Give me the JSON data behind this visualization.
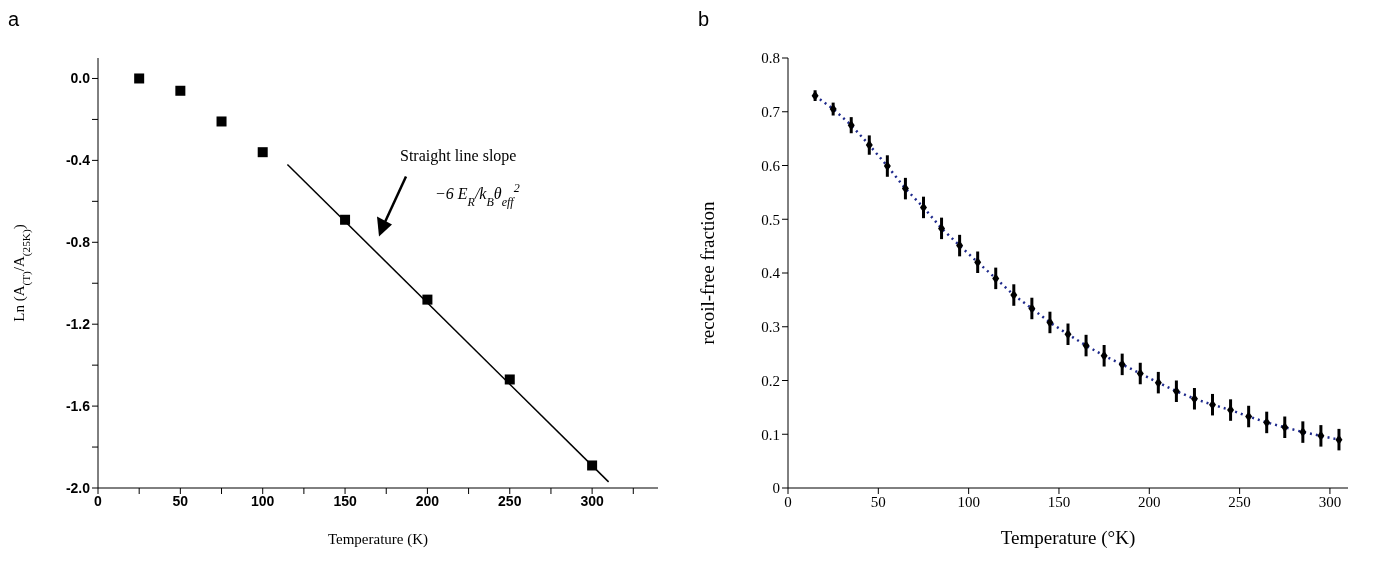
{
  "chart_data": [
    {
      "type": "scatter",
      "title": "a",
      "xlabel": "Temperature (K)",
      "ylabel": "Ln (A$_{(T)}$/A$_{(25K)}$)",
      "xlim": [
        0,
        340
      ],
      "xticks": [
        0,
        {
          "value": 25,
          "label": null
        },
        50,
        {
          "value": 75,
          "label": null
        },
        100,
        {
          "value": 125,
          "label": null
        },
        150,
        {
          "value": 175,
          "label": null
        },
        200,
        {
          "value": 225,
          "label": null
        },
        250,
        {
          "value": 275,
          "label": null
        },
        300,
        {
          "value": 325,
          "label": null
        }
      ],
      "ylim": [
        -2.0,
        0.1
      ],
      "yticks": [
        {
          "value": -2.0,
          "label": "-2.0"
        },
        {
          "value": -1.8,
          "label": null
        },
        {
          "value": -1.6,
          "label": "-1.6"
        },
        {
          "value": -1.4,
          "label": null
        },
        {
          "value": -1.2,
          "label": "-1.2"
        },
        {
          "value": -1.0,
          "label": null
        },
        {
          "value": -0.8,
          "label": "-0.8"
        },
        {
          "value": -0.6,
          "label": null
        },
        {
          "value": -0.4,
          "label": "-0.4"
        },
        {
          "value": -0.2,
          "label": null
        },
        {
          "value": 0.0,
          "label": "0.0"
        }
      ],
      "series": [
        {
          "color": "#000000",
          "marker": "square",
          "x": [
            25,
            50,
            75,
            100,
            150,
            200,
            250,
            300
          ],
          "values": [
            0.0,
            -0.06,
            -0.21,
            -0.36,
            -0.69,
            -1.08,
            -1.47,
            -1.89
          ]
        },
        {
          "type": "line",
          "color": "#000000",
          "marker": "none",
          "line_style": "solid",
          "x": [
            115,
            310
          ],
          "values": [
            -0.42,
            -1.97
          ]
        }
      ],
      "annotations": [
        "Straight line slope",
        "−6 E$_{R}$/k$_{B}$θ$_{eff}$$^{2}$"
      ]
    },
    {
      "type": "scatter",
      "title": "b",
      "xlabel": "Temperature (°K)",
      "ylabel": "recoil-free fraction",
      "xlim": [
        0,
        310
      ],
      "xticks": [
        0,
        50,
        100,
        150,
        200,
        250,
        300
      ],
      "ylim": [
        0,
        0.8
      ],
      "yticks": [
        0,
        0.1,
        0.2,
        0.3,
        0.4,
        0.5,
        0.6,
        0.7,
        0.8
      ],
      "series": [
        {
          "type": "line",
          "color": "#1f2a8c",
          "marker": "none",
          "line_style": "dotted",
          "x": [
            15,
            25,
            35,
            45,
            55,
            65,
            75,
            85,
            95,
            105,
            115,
            125,
            135,
            145,
            155,
            165,
            175,
            185,
            195,
            205,
            215,
            225,
            235,
            245,
            255,
            265,
            275,
            285,
            295,
            305
          ],
          "values": [
            0.73,
            0.705,
            0.675,
            0.638,
            0.599,
            0.557,
            0.522,
            0.483,
            0.451,
            0.42,
            0.39,
            0.359,
            0.334,
            0.308,
            0.286,
            0.265,
            0.246,
            0.23,
            0.213,
            0.196,
            0.18,
            0.166,
            0.155,
            0.145,
            0.133,
            0.122,
            0.113,
            0.104,
            0.097,
            0.09
          ]
        },
        {
          "color": "#000000",
          "marker": "diamond",
          "x": [
            15,
            25,
            35,
            45,
            55,
            65,
            75,
            85,
            95,
            105,
            115,
            125,
            135,
            145,
            155,
            165,
            175,
            185,
            195,
            205,
            215,
            225,
            235,
            245,
            255,
            265,
            275,
            285,
            295,
            305
          ],
          "values": [
            0.73,
            0.705,
            0.675,
            0.638,
            0.599,
            0.557,
            0.522,
            0.483,
            0.451,
            0.42,
            0.39,
            0.359,
            0.334,
            0.308,
            0.286,
            0.265,
            0.246,
            0.23,
            0.213,
            0.196,
            0.18,
            0.166,
            0.155,
            0.145,
            0.133,
            0.122,
            0.113,
            0.104,
            0.097,
            0.09
          ],
          "errors": [
            0.01,
            0.012,
            0.015,
            0.018,
            0.02,
            0.02,
            0.02,
            0.02,
            0.02,
            0.02,
            0.02,
            0.02,
            0.02,
            0.02,
            0.02,
            0.02,
            0.02,
            0.02,
            0.02,
            0.02,
            0.02,
            0.02,
            0.02,
            0.02,
            0.02,
            0.02,
            0.02,
            0.02,
            0.02,
            0.02
          ]
        }
      ]
    }
  ]
}
